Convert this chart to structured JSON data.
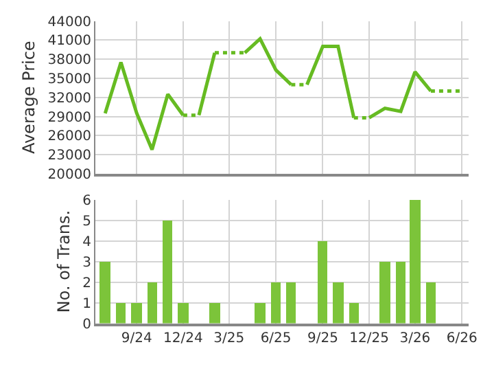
{
  "chart_data": [
    {
      "type": "line",
      "ylabel": "Average Price",
      "xlim": [
        "2024-06-12",
        "2026-06-14"
      ],
      "xticks": [
        {
          "value": "2024-09",
          "label": null
        },
        {
          "value": "2024-12",
          "label": null
        },
        {
          "value": "2025-03",
          "label": null
        },
        {
          "value": "2025-06",
          "label": null
        },
        {
          "value": "2025-09",
          "label": null
        },
        {
          "value": "2025-12",
          "label": null
        },
        {
          "value": "2026-03",
          "label": null
        },
        {
          "value": "2026-06",
          "label": null
        }
      ],
      "ylim": [
        20000,
        44000
      ],
      "yticks": [
        20000,
        23000,
        26000,
        29000,
        32000,
        35000,
        38000,
        41000,
        44000
      ],
      "grid": true,
      "tick_labels": "y",
      "marker": "none",
      "series": [
        {
          "color": "#66bb22",
          "line_style": "solid",
          "x": [
            "2024-07",
            "2024-08",
            "2024-09",
            "2024-10",
            "2024-11",
            "2024-12"
          ],
          "values": [
            29500,
            37500,
            29500,
            23800,
            32500,
            29200
          ]
        },
        {
          "color": "#66bb22",
          "line_style": "dotted",
          "x": [
            "2024-12",
            "2025-01"
          ],
          "values": [
            29200,
            29200
          ]
        },
        {
          "color": "#66bb22",
          "line_style": "solid",
          "x": [
            "2025-01",
            "2025-02"
          ],
          "values": [
            29200,
            39000
          ]
        },
        {
          "color": "#66bb22",
          "line_style": "dotted",
          "x": [
            "2025-02",
            "2025-03",
            "2025-04"
          ],
          "values": [
            39000,
            39000,
            39000
          ]
        },
        {
          "color": "#66bb22",
          "line_style": "solid",
          "x": [
            "2025-04",
            "2025-05",
            "2025-06",
            "2025-07"
          ],
          "values": [
            39000,
            41200,
            36300,
            34000
          ]
        },
        {
          "color": "#66bb22",
          "line_style": "dotted",
          "x": [
            "2025-07",
            "2025-08"
          ],
          "values": [
            34000,
            34000
          ]
        },
        {
          "color": "#66bb22",
          "line_style": "solid",
          "x": [
            "2025-08",
            "2025-09",
            "2025-10",
            "2025-11"
          ],
          "values": [
            34000,
            40000,
            40000,
            28800
          ]
        },
        {
          "color": "#66bb22",
          "line_style": "dotted",
          "x": [
            "2025-11",
            "2025-12"
          ],
          "values": [
            28800,
            28800
          ]
        },
        {
          "color": "#66bb22",
          "line_style": "solid",
          "x": [
            "2025-12",
            "2026-01",
            "2026-02",
            "2026-03",
            "2026-04"
          ],
          "values": [
            28800,
            30300,
            29800,
            36000,
            33000
          ]
        },
        {
          "color": "#66bb22",
          "line_style": "dotted",
          "x": [
            "2026-04",
            "2026-05",
            "2026-06"
          ],
          "values": [
            33000,
            33000,
            33000
          ]
        }
      ]
    },
    {
      "type": "bar",
      "ylabel": "No. of Trans.",
      "xlim": [
        "2024-06-12",
        "2026-06-14"
      ],
      "xticks": [
        {
          "value": "2024-09",
          "label": "9/24"
        },
        {
          "value": "2024-12",
          "label": "12/24"
        },
        {
          "value": "2025-03",
          "label": "3/25"
        },
        {
          "value": "2025-06",
          "label": "6/25"
        },
        {
          "value": "2025-09",
          "label": "9/25"
        },
        {
          "value": "2025-12",
          "label": "12/25"
        },
        {
          "value": "2026-03",
          "label": "3/26"
        },
        {
          "value": "2026-06",
          "label": "6/26"
        }
      ],
      "ylim": [
        0,
        6
      ],
      "yticks": [
        0,
        1,
        2,
        3,
        4,
        5,
        6
      ],
      "grid": true,
      "x": [
        "2024-07",
        "2024-08",
        "2024-09",
        "2024-10",
        "2024-11",
        "2024-12",
        "2025-01",
        "2025-02",
        "2025-03",
        "2025-04",
        "2025-05",
        "2025-06",
        "2025-07",
        "2025-08",
        "2025-09",
        "2025-10",
        "2025-11",
        "2025-12",
        "2026-01",
        "2026-02",
        "2026-03",
        "2026-04"
      ],
      "series": [
        {
          "color": "#7cc43a",
          "values": [
            3,
            1,
            1,
            2,
            5,
            1,
            0,
            1,
            0,
            0,
            1,
            2,
            2,
            0,
            4,
            2,
            1,
            0,
            3,
            3,
            6,
            2
          ]
        }
      ]
    }
  ]
}
